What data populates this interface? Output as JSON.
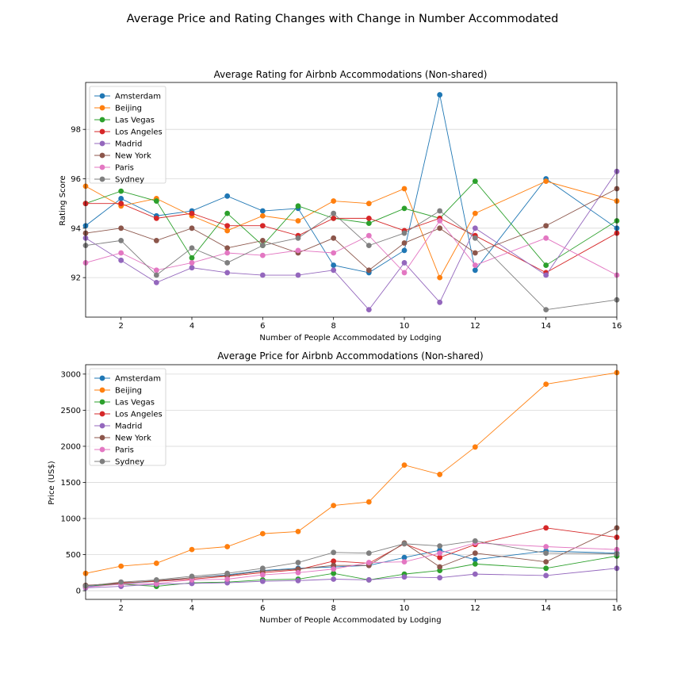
{
  "figure": {
    "title": "Average Price and Rating Changes with Change in Number Accommodated"
  },
  "chart_data": [
    {
      "type": "line",
      "title": "Average Rating for Airbnb Accommodations (Non-shared)",
      "xlabel": "Number of People Accommodated by Lodging",
      "ylabel": "Rating Score",
      "xlim": [
        1,
        16
      ],
      "ylim": [
        90.4,
        99.9
      ],
      "xticks": [
        2,
        4,
        6,
        8,
        10,
        12,
        14,
        16
      ],
      "yticks": [
        92,
        94,
        96,
        98
      ],
      "grid": "horizontal",
      "legend_position": "top-left",
      "x": [
        1,
        2,
        3,
        4,
        5,
        6,
        7,
        8,
        9,
        10,
        11,
        12,
        14,
        16
      ],
      "series": [
        {
          "name": "Amsterdam",
          "color": "#1f77b4",
          "values": [
            94.1,
            95.2,
            94.5,
            94.7,
            95.3,
            94.7,
            94.8,
            92.5,
            92.2,
            93.1,
            99.4,
            92.3,
            96.0,
            94.0
          ]
        },
        {
          "name": "Beijing",
          "color": "#ff7f0e",
          "values": [
            95.7,
            94.9,
            95.2,
            94.5,
            93.9,
            94.5,
            94.3,
            95.1,
            95.0,
            95.6,
            92.0,
            94.6,
            95.9,
            95.1
          ]
        },
        {
          "name": "Las Vegas",
          "color": "#2ca02c",
          "values": [
            95.0,
            95.5,
            95.1,
            92.8,
            94.6,
            93.3,
            94.9,
            94.4,
            94.2,
            94.8,
            94.4,
            95.9,
            92.5,
            94.3
          ]
        },
        {
          "name": "Los Angeles",
          "color": "#d62728",
          "values": [
            95.0,
            95.0,
            94.4,
            94.6,
            94.1,
            94.1,
            93.7,
            94.4,
            94.4,
            93.9,
            94.4,
            93.7,
            92.2,
            93.8
          ]
        },
        {
          "name": "Madrid",
          "color": "#9467bd",
          "values": [
            93.6,
            92.7,
            91.8,
            92.4,
            92.2,
            92.1,
            92.1,
            92.3,
            90.7,
            92.6,
            91.0,
            94.0,
            92.1,
            96.3
          ]
        },
        {
          "name": "New York",
          "color": "#8c564b",
          "values": [
            93.8,
            94.0,
            93.5,
            94.0,
            93.2,
            93.5,
            93.0,
            93.6,
            92.3,
            93.4,
            94.0,
            93.0,
            94.1,
            95.6
          ]
        },
        {
          "name": "Paris",
          "color": "#e377c2",
          "values": [
            92.6,
            93.0,
            92.3,
            92.6,
            93.0,
            92.9,
            93.1,
            93.0,
            93.7,
            92.2,
            94.3,
            92.5,
            93.6,
            92.1
          ]
        },
        {
          "name": "Sydney",
          "color": "#7f7f7f",
          "values": [
            93.3,
            93.5,
            92.1,
            93.2,
            92.6,
            93.3,
            93.6,
            94.6,
            93.3,
            93.8,
            94.7,
            93.6,
            90.7,
            91.1
          ]
        }
      ]
    },
    {
      "type": "line",
      "title": "Average Price for Airbnb Accommodations (Non-shared)",
      "xlabel": "Number of People Accommodated by Lodging",
      "ylabel": "Price (US$)",
      "xlim": [
        1,
        16
      ],
      "ylim": [
        -120,
        3130
      ],
      "xticks": [
        2,
        4,
        6,
        8,
        10,
        12,
        14,
        16
      ],
      "yticks": [
        0,
        500,
        1000,
        1500,
        2000,
        2500,
        3000
      ],
      "grid": "horizontal",
      "legend_position": "top-left",
      "x": [
        1,
        2,
        3,
        4,
        5,
        6,
        7,
        8,
        9,
        10,
        11,
        12,
        14,
        16
      ],
      "series": [
        {
          "name": "Amsterdam",
          "color": "#1f77b4",
          "values": [
            55,
            100,
            130,
            180,
            220,
            280,
            310,
            330,
            350,
            460,
            560,
            430,
            550,
            520
          ]
        },
        {
          "name": "Beijing",
          "color": "#ff7f0e",
          "values": [
            240,
            340,
            380,
            570,
            610,
            790,
            820,
            1180,
            1230,
            1740,
            1610,
            1990,
            2860,
            3020
          ]
        },
        {
          "name": "Las Vegas",
          "color": "#2ca02c",
          "values": [
            70,
            90,
            60,
            110,
            120,
            150,
            160,
            240,
            150,
            230,
            280,
            370,
            310,
            480
          ]
        },
        {
          "name": "Los Angeles",
          "color": "#d62728",
          "values": [
            70,
            110,
            130,
            160,
            200,
            250,
            290,
            410,
            380,
            650,
            460,
            640,
            870,
            740
          ]
        },
        {
          "name": "Madrid",
          "color": "#9467bd",
          "values": [
            40,
            60,
            90,
            100,
            110,
            130,
            140,
            160,
            150,
            190,
            180,
            230,
            210,
            310
          ]
        },
        {
          "name": "New York",
          "color": "#8c564b",
          "values": [
            75,
            100,
            140,
            180,
            210,
            270,
            300,
            350,
            350,
            660,
            330,
            520,
            400,
            870
          ]
        },
        {
          "name": "Paris",
          "color": "#e377c2",
          "values": [
            50,
            90,
            100,
            150,
            160,
            220,
            250,
            300,
            390,
            400,
            520,
            660,
            610,
            570
          ]
        },
        {
          "name": "Sydney",
          "color": "#7f7f7f",
          "values": [
            65,
            120,
            150,
            200,
            240,
            310,
            390,
            530,
            520,
            650,
            620,
            690,
            520,
            510
          ]
        }
      ]
    }
  ]
}
